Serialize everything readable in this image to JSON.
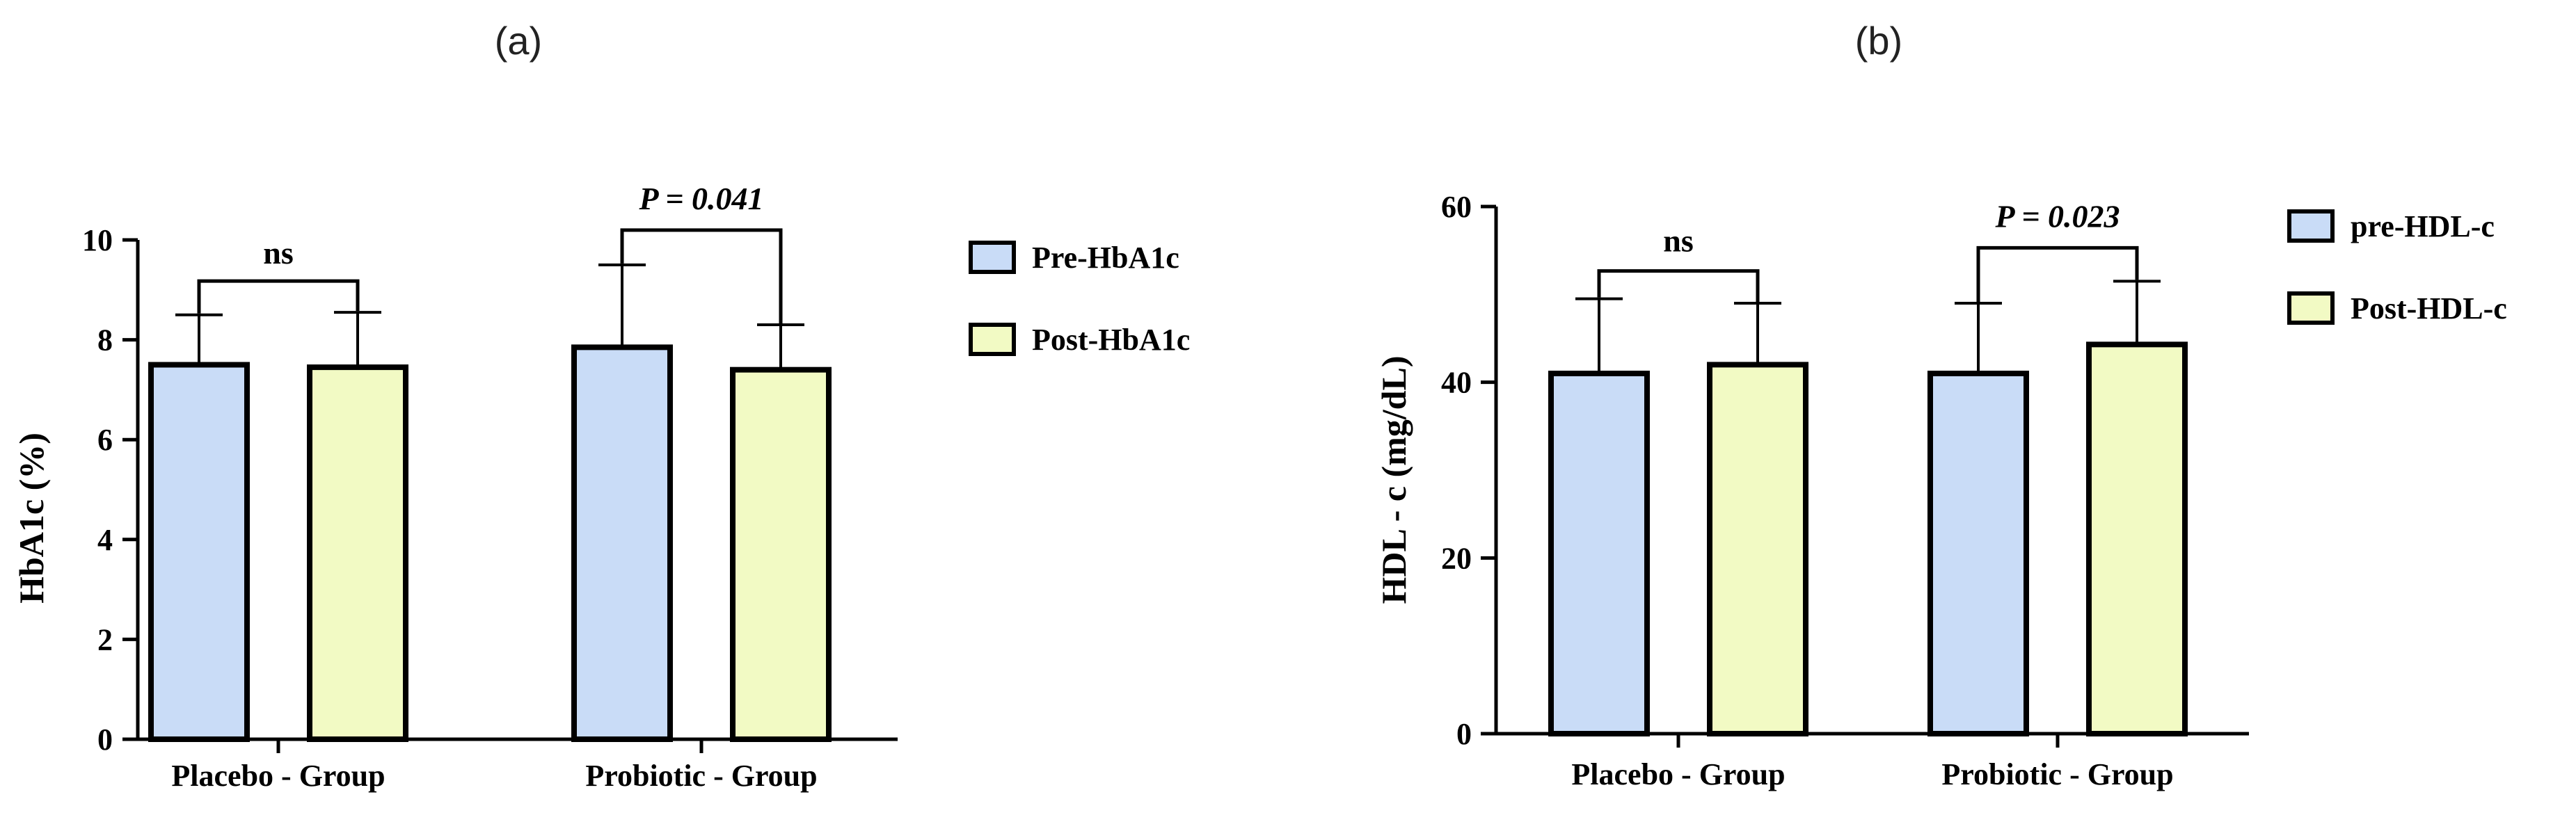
{
  "figure": {
    "panel_a_label": "(a)",
    "panel_b_label": "(b)"
  },
  "colors": {
    "pre": "#c9dcf7",
    "post": "#f2fac4",
    "outline": "#000000"
  },
  "chart_data": [
    {
      "type": "bar",
      "panel": "(a)",
      "ylabel": "HbA1c (%)",
      "xlabel": "",
      "ylim": [
        0,
        10
      ],
      "yticks": [
        "0",
        "2",
        "4",
        "6",
        "8",
        "10"
      ],
      "categories": [
        "Placebo - Group",
        "Probiotic - Group"
      ],
      "series": [
        {
          "name": "Pre-HbA1c",
          "values": [
            7.5,
            7.85
          ],
          "errors": [
            1.0,
            1.65
          ]
        },
        {
          "name": "Post-HbA1c",
          "values": [
            7.45,
            7.4
          ],
          "errors": [
            1.1,
            0.9
          ]
        }
      ],
      "annotations": [
        "ns",
        "P = 0.041"
      ],
      "legend": "right"
    },
    {
      "type": "bar",
      "panel": "(b)",
      "ylabel": "HDL - c (mg/dL)",
      "xlabel": "",
      "ylim": [
        0,
        60
      ],
      "yticks": [
        "0",
        "20",
        "40",
        "60"
      ],
      "categories": [
        "Placebo - Group",
        "Probiotic - Group"
      ],
      "series": [
        {
          "name": "pre-HDL-c",
          "values": [
            41,
            41
          ],
          "errors": [
            8.5,
            8.0
          ]
        },
        {
          "name": "Post-HDL-c",
          "values": [
            42,
            44.3
          ],
          "errors": [
            7.0,
            7.2
          ]
        }
      ],
      "annotations": [
        "ns",
        "P = 0.023"
      ],
      "legend": "right"
    }
  ]
}
